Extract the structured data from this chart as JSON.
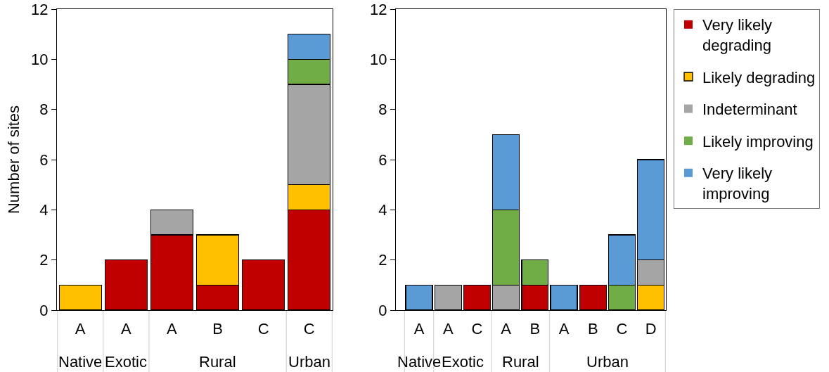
{
  "chart_data": [
    {
      "type": "bar",
      "stacked": true,
      "ylabel": "Number of sites",
      "categories": [
        "A",
        "A",
        "A",
        "B",
        "C",
        "C"
      ],
      "series": [
        {
          "name": "Very likely degrading",
          "color": "#c00000",
          "values": [
            0,
            2,
            3,
            1,
            2,
            4
          ]
        },
        {
          "name": "Likely degrading",
          "color": "#ffc000",
          "values": [
            1,
            0,
            0,
            2,
            0,
            1
          ]
        },
        {
          "name": "Indeterminant",
          "color": "#a5a5a5",
          "values": [
            0,
            0,
            1,
            0,
            0,
            4
          ]
        },
        {
          "name": "Likely improving",
          "color": "#70ad47",
          "values": [
            0,
            0,
            0,
            0,
            0,
            1
          ]
        },
        {
          "name": "Very likely improving",
          "color": "#5b9bd5",
          "values": [
            0,
            0,
            0,
            0,
            0,
            1
          ]
        }
      ],
      "ylim": [
        0,
        12
      ],
      "yticks": [
        0,
        2,
        4,
        6,
        8,
        10,
        12
      ],
      "annotations": [
        "Native",
        "Exotic",
        "Rural",
        "Urban"
      ],
      "legend": "right"
    },
    {
      "type": "bar",
      "stacked": true,
      "categories": [
        "A",
        "A",
        "C",
        "A",
        "B",
        "A",
        "B",
        "C",
        "D"
      ],
      "series": [
        {
          "name": "Very likely degrading",
          "color": "#c00000",
          "values": [
            0,
            0,
            1,
            0,
            1,
            0,
            1,
            0,
            0
          ]
        },
        {
          "name": "Likely degrading",
          "color": "#ffc000",
          "values": [
            0,
            0,
            0,
            0,
            0,
            0,
            0,
            0,
            1
          ]
        },
        {
          "name": "Indeterminant",
          "color": "#a5a5a5",
          "values": [
            0,
            1,
            0,
            1,
            0,
            0,
            0,
            0,
            1
          ]
        },
        {
          "name": "Likely improving",
          "color": "#70ad47",
          "values": [
            0,
            0,
            0,
            3,
            1,
            0,
            0,
            1,
            0
          ]
        },
        {
          "name": "Very likely improving",
          "color": "#5b9bd5",
          "values": [
            1,
            0,
            0,
            3,
            0,
            1,
            0,
            2,
            4
          ]
        }
      ],
      "ylim": [
        0,
        12
      ],
      "yticks": [
        0,
        2,
        4,
        6,
        8,
        10,
        12
      ],
      "annotations": [
        "Native",
        "Exotic",
        "Rural",
        "Urban"
      ],
      "legend": "right"
    }
  ]
}
